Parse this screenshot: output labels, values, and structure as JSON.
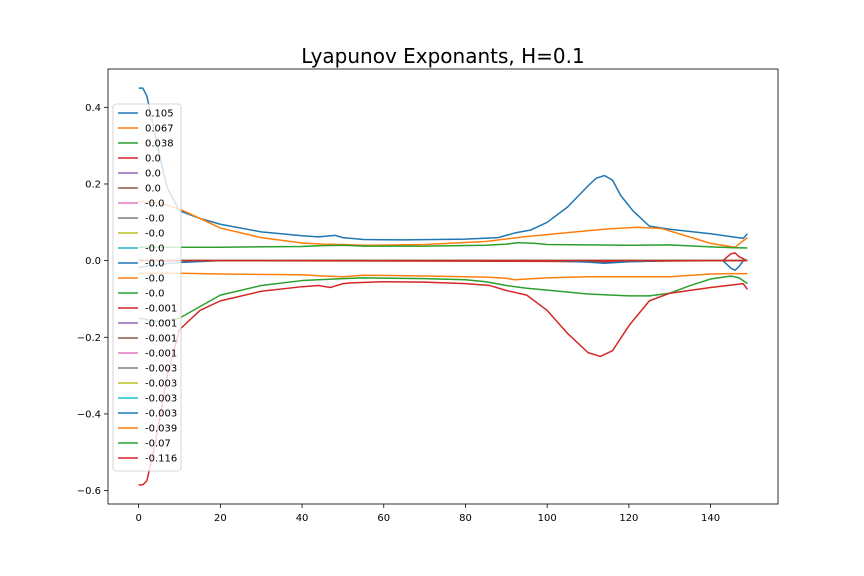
{
  "chart_data": {
    "type": "line",
    "title": "Lyapunov Exponants, H=0.1",
    "xlabel": "",
    "ylabel": "",
    "xlim": [
      -7.5,
      156.5
    ],
    "ylim": [
      -0.635,
      0.5
    ],
    "xticks": [
      0,
      20,
      40,
      60,
      80,
      100,
      120,
      140
    ],
    "yticks": [
      -0.6,
      -0.4,
      -0.2,
      0.0,
      0.2,
      0.4
    ],
    "xtick_labels": [
      "0",
      "20",
      "40",
      "60",
      "80",
      "100",
      "120",
      "140"
    ],
    "ytick_labels": [
      "−0.6",
      "−0.4",
      "−0.2",
      "0.0",
      "0.2",
      "0.4"
    ],
    "grid": false,
    "legend_position": "upper-left",
    "series": [
      {
        "name": "0.105",
        "color": "#1f77b4",
        "x": [
          0,
          1,
          2,
          3,
          5,
          7,
          10,
          15,
          20,
          30,
          40,
          44,
          46,
          48,
          50,
          55,
          65,
          80,
          88,
          92,
          96,
          100,
          105,
          110,
          112,
          114,
          116,
          118,
          121,
          125,
          130,
          140,
          148,
          149
        ],
        "y": [
          0.45,
          0.45,
          0.43,
          0.38,
          0.28,
          0.19,
          0.13,
          0.11,
          0.095,
          0.075,
          0.065,
          0.062,
          0.064,
          0.066,
          0.06,
          0.055,
          0.054,
          0.056,
          0.06,
          0.072,
          0.08,
          0.1,
          0.14,
          0.195,
          0.215,
          0.222,
          0.21,
          0.17,
          0.13,
          0.09,
          0.082,
          0.07,
          0.058,
          0.07
        ]
      },
      {
        "name": "0.067",
        "color": "#ff7f0e",
        "x": [
          0,
          5,
          10,
          15,
          20,
          30,
          40,
          45,
          50,
          55,
          70,
          85,
          95,
          105,
          115,
          122,
          128,
          140,
          146,
          149
        ],
        "y": [
          0.155,
          0.15,
          0.135,
          0.11,
          0.085,
          0.06,
          0.046,
          0.043,
          0.042,
          0.04,
          0.042,
          0.05,
          0.063,
          0.073,
          0.083,
          0.087,
          0.084,
          0.045,
          0.035,
          0.06
        ]
      },
      {
        "name": "0.038",
        "color": "#2ca02c",
        "x": [
          0,
          10,
          20,
          40,
          45,
          50,
          55,
          70,
          85,
          90,
          93,
          97,
          100,
          120,
          130,
          140,
          145,
          149
        ],
        "y": [
          0.035,
          0.035,
          0.035,
          0.037,
          0.039,
          0.04,
          0.038,
          0.038,
          0.04,
          0.043,
          0.047,
          0.045,
          0.042,
          0.04,
          0.041,
          0.036,
          0.034,
          0.033
        ]
      },
      {
        "name": "0.0",
        "color": "#d62728",
        "x": [
          0,
          20,
          100,
          110,
          115,
          120,
          130,
          143,
          145,
          146,
          147,
          149
        ],
        "y": [
          0.0,
          0.0,
          -0.002,
          -0.003,
          -0.004,
          -0.002,
          -0.001,
          0.0,
          0.018,
          0.02,
          0.01,
          0.0
        ]
      },
      {
        "name": "0.0",
        "color": "#9467bd",
        "x": [
          0,
          149
        ],
        "y": [
          0.0,
          0.0
        ]
      },
      {
        "name": "0.0",
        "color": "#8c564b",
        "x": [
          0,
          149
        ],
        "y": [
          0.0,
          0.0
        ]
      },
      {
        "name": "-0.0",
        "color": "#e377c2",
        "x": [
          0,
          149
        ],
        "y": [
          0.0,
          0.0
        ]
      },
      {
        "name": "-0.0",
        "color": "#7f7f7f",
        "x": [
          0,
          149
        ],
        "y": [
          0.0,
          0.0
        ]
      },
      {
        "name": "-0.0",
        "color": "#bcbd22",
        "x": [
          0,
          149
        ],
        "y": [
          0.0,
          0.0
        ]
      },
      {
        "name": "-0.0",
        "color": "#17becf",
        "x": [
          0,
          149
        ],
        "y": [
          0.0,
          0.0
        ]
      },
      {
        "name": "-0.0",
        "color": "#1f77b4",
        "x": [
          0,
          5,
          10,
          20,
          100,
          110,
          114,
          120,
          130,
          143,
          145,
          146,
          147,
          148,
          149
        ],
        "y": [
          -0.018,
          -0.01,
          -0.005,
          0.0,
          0.0,
          -0.004,
          -0.007,
          -0.003,
          0.0,
          0.0,
          -0.02,
          -0.025,
          -0.015,
          0.0,
          0.0
        ]
      },
      {
        "name": "-0.0",
        "color": "#ff7f0e",
        "x": [
          0,
          10,
          20,
          40,
          45,
          50,
          55,
          70,
          85,
          90,
          92,
          95,
          100,
          110,
          120,
          130,
          140,
          145,
          149
        ],
        "y": [
          -0.033,
          -0.033,
          -0.035,
          -0.037,
          -0.04,
          -0.042,
          -0.038,
          -0.04,
          -0.043,
          -0.046,
          -0.05,
          -0.048,
          -0.045,
          -0.042,
          -0.042,
          -0.042,
          -0.035,
          -0.034,
          -0.034
        ]
      },
      {
        "name": "-0.0",
        "color": "#2ca02c",
        "x": [
          0,
          5,
          10,
          15,
          20,
          30,
          40,
          50,
          55,
          70,
          80,
          85,
          90,
          95,
          100,
          110,
          120,
          125,
          130,
          135,
          140,
          145,
          147,
          149
        ],
        "y": [
          -0.15,
          -0.16,
          -0.15,
          -0.12,
          -0.09,
          -0.065,
          -0.052,
          -0.047,
          -0.045,
          -0.047,
          -0.05,
          -0.055,
          -0.065,
          -0.072,
          -0.077,
          -0.087,
          -0.092,
          -0.092,
          -0.085,
          -0.065,
          -0.048,
          -0.04,
          -0.045,
          -0.06
        ]
      },
      {
        "name": "-0.001",
        "color": "#d62728",
        "x": [
          0,
          1,
          2,
          4,
          7,
          10,
          15,
          20,
          30,
          40,
          44,
          47,
          50,
          52,
          60,
          70,
          80,
          86,
          90,
          95,
          100,
          105,
          110,
          113,
          116,
          120,
          125,
          130,
          140,
          148,
          149
        ],
        "y": [
          -0.585,
          -0.585,
          -0.575,
          -0.48,
          -0.3,
          -0.18,
          -0.13,
          -0.105,
          -0.08,
          -0.068,
          -0.065,
          -0.07,
          -0.06,
          -0.058,
          -0.055,
          -0.056,
          -0.06,
          -0.065,
          -0.078,
          -0.09,
          -0.13,
          -0.19,
          -0.24,
          -0.25,
          -0.235,
          -0.17,
          -0.105,
          -0.085,
          -0.07,
          -0.06,
          -0.075
        ]
      },
      {
        "name": "-0.001",
        "color": "#9467bd",
        "x": [
          0,
          149
        ],
        "y": [
          0.0,
          0.0
        ]
      },
      {
        "name": "-0.001",
        "color": "#8c564b",
        "x": [
          0,
          149
        ],
        "y": [
          0.0,
          0.0
        ]
      },
      {
        "name": "-0.001",
        "color": "#e377c2",
        "x": [
          0,
          149
        ],
        "y": [
          0.0,
          0.0
        ]
      },
      {
        "name": "-0.003",
        "color": "#7f7f7f",
        "x": [
          0,
          149
        ],
        "y": [
          0.0,
          0.0
        ]
      },
      {
        "name": "-0.003",
        "color": "#bcbd22",
        "x": [
          0,
          149
        ],
        "y": [
          0.0,
          0.0
        ]
      },
      {
        "name": "-0.003",
        "color": "#17becf",
        "x": [
          0,
          149
        ],
        "y": [
          0.0,
          0.0
        ]
      },
      {
        "name": "-0.003",
        "color": "#1f77b4",
        "x": [
          0,
          149
        ],
        "y": [
          0.0,
          0.0
        ]
      },
      {
        "name": "-0.039",
        "color": "#ff7f0e",
        "x": [
          0,
          149
        ],
        "y": [
          0.0,
          0.0
        ]
      },
      {
        "name": "-0.07",
        "color": "#2ca02c",
        "x": [
          0,
          149
        ],
        "y": [
          0.0,
          0.0
        ]
      },
      {
        "name": "-0.116",
        "color": "#d62728",
        "x": [
          0,
          149
        ],
        "y": [
          0.0,
          0.0
        ]
      }
    ]
  }
}
